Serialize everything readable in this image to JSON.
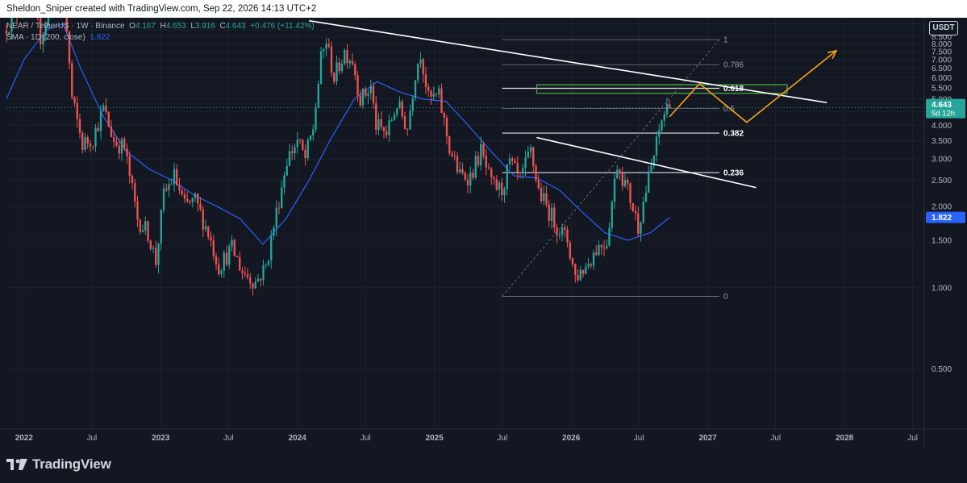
{
  "header": {
    "attribution": "Sheldon_Sniper created with TradingView.com, Sep 22, 2026 14:13 UTC+2"
  },
  "legend": {
    "symbol": "NEAR / TetherUS · 1W · Binance",
    "o_label": "O",
    "o": "4.167",
    "h_label": "H",
    "h": "4.653",
    "l_label": "L",
    "l": "3.916",
    "c_label": "C",
    "c": "4.643",
    "change": "+0.476 (+11.42%)",
    "sma_label": "SMA · 1D (200, close)",
    "sma_value": "1.822"
  },
  "currency": "USDT",
  "branding": {
    "logo_text": "TradingView"
  },
  "colors": {
    "background": "#131722",
    "up": "#26a69a",
    "down": "#ef5350",
    "sma": "#2962ff",
    "projection": "#f7a21b",
    "zone": "#4caf50",
    "trendline": "#ffffff"
  },
  "chart_data": {
    "type": "candlestick",
    "symbol": "NEAR/USDT",
    "interval": "1W",
    "exchange": "Binance",
    "x_range": [
      "2021-11-15",
      "2028-08-01"
    ],
    "y_range": [
      0.3,
      10.0
    ],
    "y_ticks": [
      "0.500",
      "1.000",
      "1.500",
      "2.000",
      "2.500",
      "3.000",
      "3.500",
      "4.000",
      "4.500",
      "5.000",
      "5.500",
      "6.000",
      "6.500",
      "7.000",
      "7.500",
      "8.000",
      "8.500",
      "9.000",
      "9.500"
    ],
    "x_ticks": [
      {
        "date": "2022-01-01",
        "label": "2022"
      },
      {
        "date": "2022-07-01",
        "label": "Jul"
      },
      {
        "date": "2023-01-01",
        "label": "2023"
      },
      {
        "date": "2023-07-01",
        "label": "Jul"
      },
      {
        "date": "2024-01-01",
        "label": "2024"
      },
      {
        "date": "2024-07-01",
        "label": "Jul"
      },
      {
        "date": "2025-01-01",
        "label": "2025"
      },
      {
        "date": "2025-07-01",
        "label": "Jul"
      },
      {
        "date": "2026-01-01",
        "label": "2026"
      },
      {
        "date": "2026-07-01",
        "label": "Jul"
      },
      {
        "date": "2027-01-01",
        "label": "2027"
      },
      {
        "date": "2027-07-01",
        "label": "Jul"
      },
      {
        "date": "2028-01-01",
        "label": "2028"
      },
      {
        "date": "2028-07-01",
        "label": "Jul"
      }
    ],
    "price_path": [
      [
        "2021-11-15",
        9.0
      ],
      [
        "2021-12-20",
        10.5
      ],
      [
        "2022-01-17",
        13.5
      ],
      [
        "2022-02-21",
        8.5
      ],
      [
        "2022-03-21",
        11.0
      ],
      [
        "2022-04-11",
        17.0
      ],
      [
        "2022-05-02",
        9.0
      ],
      [
        "2022-05-16",
        5.0
      ],
      [
        "2022-06-13",
        3.4
      ],
      [
        "2022-07-11",
        3.6
      ],
      [
        "2022-08-08",
        4.6
      ],
      [
        "2022-09-05",
        3.5
      ],
      [
        "2022-10-03",
        3.3
      ],
      [
        "2022-11-07",
        1.8
      ],
      [
        "2022-12-05",
        1.6
      ],
      [
        "2022-12-26",
        1.25
      ],
      [
        "2023-01-16",
        2.2
      ],
      [
        "2023-02-13",
        2.6
      ],
      [
        "2023-03-13",
        2.0
      ],
      [
        "2023-04-10",
        2.1
      ],
      [
        "2023-05-15",
        1.6
      ],
      [
        "2023-06-12",
        1.2
      ],
      [
        "2023-07-17",
        1.4
      ],
      [
        "2023-08-14",
        1.15
      ],
      [
        "2023-09-18",
        1.05
      ],
      [
        "2023-10-16",
        1.2
      ],
      [
        "2023-11-13",
        1.9
      ],
      [
        "2023-12-11",
        3.0
      ],
      [
        "2024-01-08",
        3.5
      ],
      [
        "2024-01-29",
        3.0
      ],
      [
        "2024-02-19",
        3.9
      ],
      [
        "2024-03-11",
        7.0
      ],
      [
        "2024-03-25",
        8.2
      ],
      [
        "2024-04-15",
        6.0
      ],
      [
        "2024-05-13",
        7.5
      ],
      [
        "2024-06-03",
        7.0
      ],
      [
        "2024-06-24",
        5.0
      ],
      [
        "2024-07-22",
        5.5
      ],
      [
        "2024-08-05",
        4.0
      ],
      [
        "2024-09-02",
        3.7
      ],
      [
        "2024-09-30",
        4.8
      ],
      [
        "2024-10-28",
        3.9
      ],
      [
        "2024-11-18",
        6.3
      ],
      [
        "2024-12-02",
        7.5
      ],
      [
        "2024-12-23",
        5.0
      ],
      [
        "2025-01-20",
        5.1
      ],
      [
        "2025-02-17",
        3.3
      ],
      [
        "2025-03-17",
        2.6
      ],
      [
        "2025-04-14",
        2.6
      ],
      [
        "2025-05-12",
        3.2
      ],
      [
        "2025-06-09",
        2.4
      ],
      [
        "2025-07-07",
        2.3
      ],
      [
        "2025-07-28",
        2.9
      ],
      [
        "2025-08-25",
        2.5
      ],
      [
        "2025-09-22",
        3.2
      ],
      [
        "2025-10-13",
        2.3
      ],
      [
        "2025-11-03",
        2.0
      ],
      [
        "2025-12-01",
        1.7
      ],
      [
        "2025-12-29",
        1.5
      ],
      [
        "2026-01-19",
        1.1
      ],
      [
        "2026-02-16",
        1.2
      ],
      [
        "2026-03-16",
        1.4
      ],
      [
        "2026-04-13",
        1.5
      ],
      [
        "2026-05-11",
        2.9
      ],
      [
        "2026-06-08",
        2.3
      ],
      [
        "2026-07-06",
        1.7
      ],
      [
        "2026-07-27",
        2.3
      ],
      [
        "2026-08-24",
        3.4
      ],
      [
        "2026-09-07",
        4.2
      ],
      [
        "2026-09-21",
        4.643
      ]
    ],
    "series": [
      {
        "name": "SMA · 1D (200, close)",
        "color": "#2962ff",
        "points": [
          [
            "2021-11-15",
            5.0
          ],
          [
            "2022-01-01",
            7.0
          ],
          [
            "2022-03-01",
            9.0
          ],
          [
            "2022-04-15",
            9.5
          ],
          [
            "2022-06-01",
            6.5
          ],
          [
            "2022-08-01",
            4.3
          ],
          [
            "2022-10-01",
            3.2
          ],
          [
            "2022-12-01",
            2.75
          ],
          [
            "2023-02-01",
            2.5
          ],
          [
            "2023-04-01",
            2.2
          ],
          [
            "2023-06-01",
            2.0
          ],
          [
            "2023-08-01",
            1.8
          ],
          [
            "2023-10-01",
            1.45
          ],
          [
            "2023-12-01",
            1.8
          ],
          [
            "2024-02-01",
            2.5
          ],
          [
            "2024-04-01",
            3.6
          ],
          [
            "2024-06-01",
            5.0
          ],
          [
            "2024-08-01",
            5.8
          ],
          [
            "2024-10-01",
            5.3
          ],
          [
            "2024-12-01",
            5.0
          ],
          [
            "2025-02-01",
            4.9
          ],
          [
            "2025-04-01",
            4.0
          ],
          [
            "2025-06-01",
            3.2
          ],
          [
            "2025-08-01",
            2.6
          ],
          [
            "2025-10-01",
            2.55
          ],
          [
            "2025-12-01",
            2.3
          ],
          [
            "2026-02-01",
            1.9
          ],
          [
            "2026-04-01",
            1.6
          ],
          [
            "2026-06-01",
            1.5
          ],
          [
            "2026-08-01",
            1.6
          ],
          [
            "2026-09-21",
            1.822
          ]
        ]
      }
    ],
    "current_price": {
      "value": "4.643",
      "countdown": "5d 12h"
    },
    "sma_badge": "1.822",
    "fibonacci": {
      "x_start": "2025-07-01",
      "x_end": "2027-02-01",
      "levels": [
        {
          "label": "1",
          "price": 8.3
        },
        {
          "label": "0.786",
          "price": 6.7
        },
        {
          "label": "0.618",
          "price": 5.48
        },
        {
          "label": "0.5",
          "price": 4.61
        },
        {
          "label": "0.382",
          "price": 3.74
        },
        {
          "label": "0.236",
          "price": 2.67
        },
        {
          "label": "0",
          "price": 0.93
        }
      ]
    },
    "trendlines": [
      {
        "from": [
          "2024-02-01",
          9.75
        ],
        "to": [
          "2027-11-15",
          4.85
        ]
      },
      {
        "from": [
          "2025-10-01",
          3.6
        ],
        "to": [
          "2027-05-10",
          2.35
        ]
      }
    ],
    "diagonal": {
      "from": [
        "2025-07-01",
        0.93
      ],
      "to": [
        "2027-02-01",
        8.3
      ]
    },
    "zone": {
      "x0": "2025-10-01",
      "x1": "2027-08-01",
      "y0": 5.25,
      "y1": 5.65
    },
    "projection": [
      [
        "2026-09-21",
        4.3
      ],
      [
        "2026-12-10",
        5.7
      ],
      [
        "2027-04-15",
        4.1
      ],
      [
        "2027-12-10",
        7.55
      ]
    ]
  }
}
